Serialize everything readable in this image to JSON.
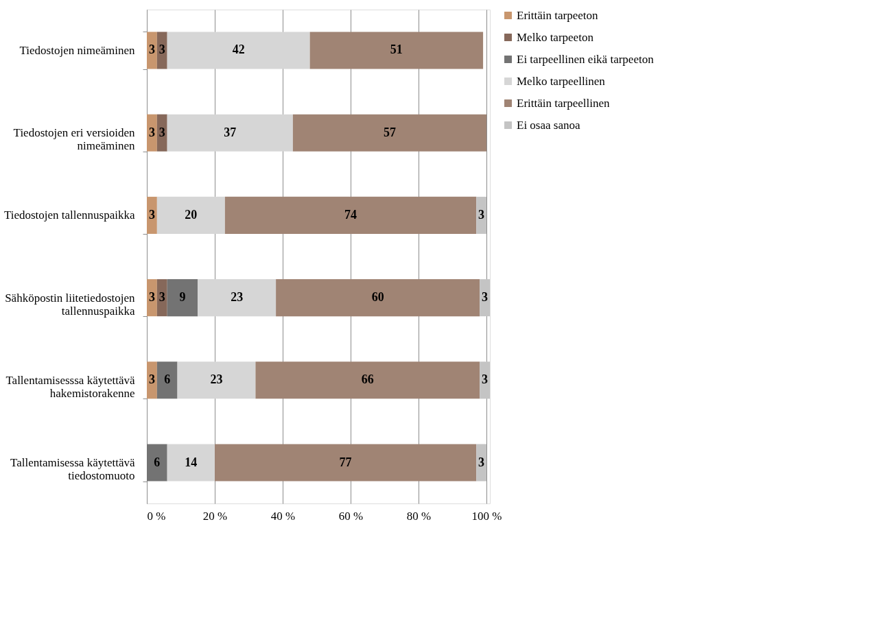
{
  "chart_data": {
    "type": "bar",
    "orientation": "horizontal",
    "stacked": true,
    "data_labels": true,
    "grid": "x",
    "legend": "right",
    "categories": [
      "Tiedostojen nimeäminen",
      "Tiedostojen eri versioiden nimeäminen",
      "Tiedostojen tallennuspaikka",
      "Sähköpostin liitetiedostojen tallennuspaikka",
      "Tallentamisesssa käytettävä hakemistorakenne",
      "Tallentamisessa käytettävä tiedostomuoto"
    ],
    "series": [
      {
        "name": "Erittäin tarpeeton",
        "color": "#c8966e",
        "values": [
          3,
          3,
          3,
          3,
          3,
          null
        ]
      },
      {
        "name": "Melko tarpeeton",
        "color": "#86685a",
        "values": [
          3,
          3,
          null,
          3,
          null,
          null
        ]
      },
      {
        "name": "Ei tarpeellinen eikä tarpeeton",
        "color": "#737373",
        "values": [
          null,
          null,
          null,
          9,
          6,
          6
        ]
      },
      {
        "name": "Melko tarpeellinen",
        "color": "#d6d6d6",
        "values": [
          42,
          37,
          20,
          23,
          23,
          14
        ]
      },
      {
        "name": "Erittäin tarpeellinen",
        "color": "#a08474",
        "values": [
          51,
          57,
          74,
          60,
          66,
          77
        ]
      },
      {
        "name": "Ei osaa sanoa",
        "color": "#c4c4c4",
        "values": [
          null,
          null,
          3,
          3,
          3,
          3
        ]
      }
    ],
    "xlim": [
      0,
      101
    ],
    "xticks": [
      {
        "value": 0,
        "label": "0 %"
      },
      {
        "value": 20,
        "label": "20 %"
      },
      {
        "value": 40,
        "label": "40 %"
      },
      {
        "value": 60,
        "label": "60 %"
      },
      {
        "value": 80,
        "label": "80 %"
      },
      {
        "value": 100,
        "label": "100 %"
      }
    ]
  }
}
